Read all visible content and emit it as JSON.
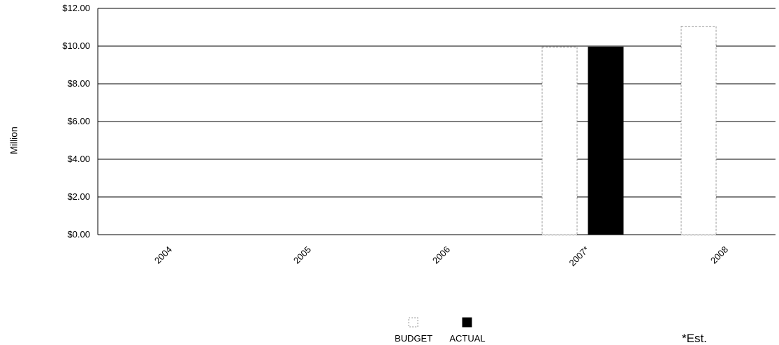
{
  "chart_data": {
    "type": "bar",
    "categories": [
      "2004",
      "2005",
      "2006",
      "2007*",
      "2008"
    ],
    "series": [
      {
        "name": "BUDGET",
        "values": [
          0,
          0,
          0,
          9.95,
          11.05
        ],
        "fill": "#ffffff",
        "stroke": "#999999"
      },
      {
        "name": "ACTUAL",
        "values": [
          0,
          0,
          0,
          9.95,
          null
        ],
        "fill": "#000000",
        "stroke": "#000000"
      }
    ],
    "ylabel": "Million",
    "ylim": [
      0,
      12
    ],
    "yticks": [
      0,
      2,
      4,
      6,
      8,
      10,
      12
    ],
    "ytick_labels": [
      "$0.00",
      "$2.00",
      "$4.00",
      "$6.00",
      "$8.00",
      "$10.00",
      "$12.00"
    ],
    "grid": true,
    "legend_position": "bottom-center",
    "footnote": "*Est."
  }
}
